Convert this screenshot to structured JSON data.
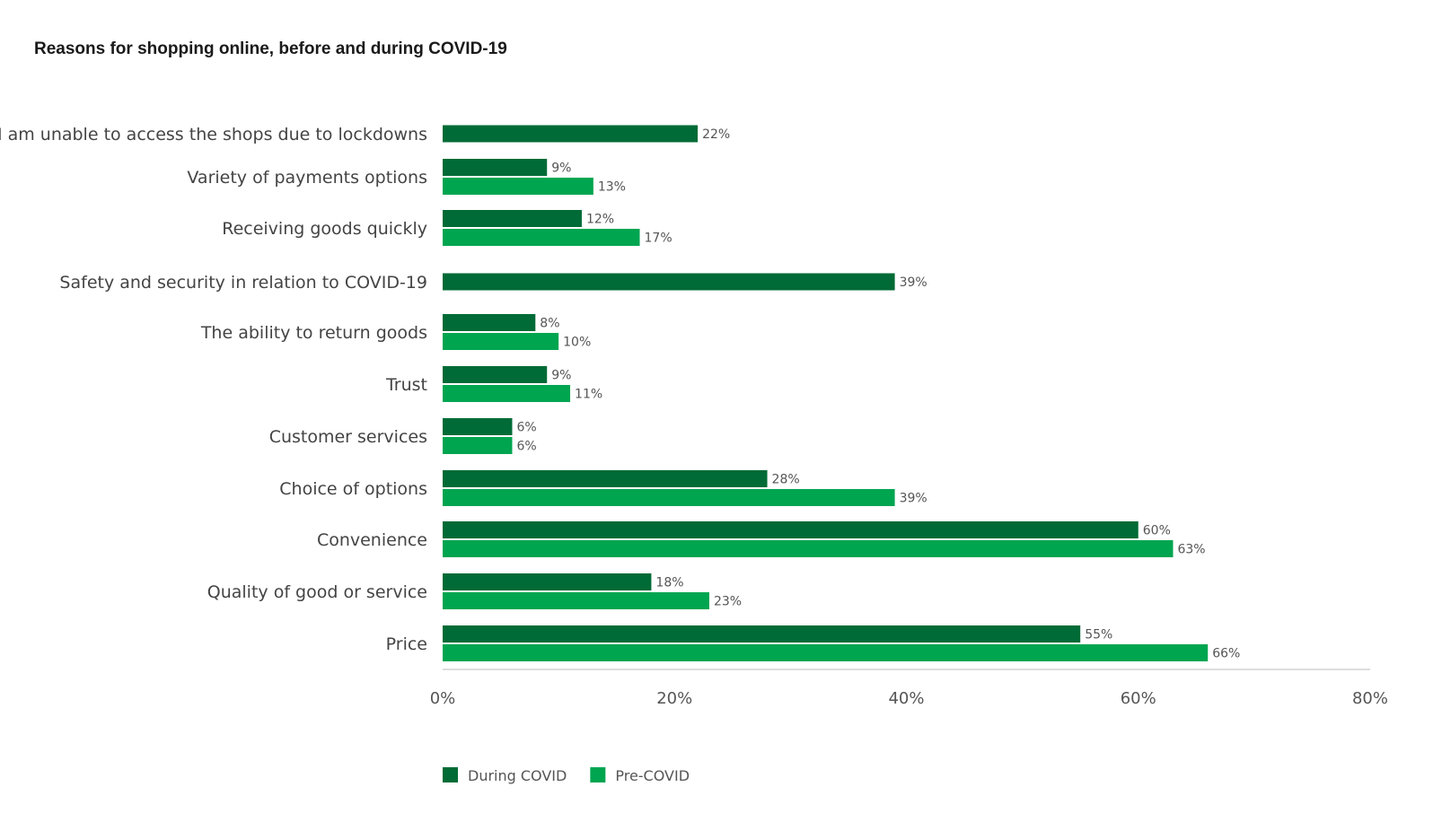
{
  "chart_data": {
    "type": "bar",
    "orientation": "horizontal",
    "title": "Reasons for shopping online, before and during COVID-19",
    "categories": [
      "I am unable to access the shops due to lockdowns",
      "Variety of payments options",
      "Receiving goods quickly",
      "Safety and security in relation to COVID-19",
      "The ability to return goods",
      "Trust",
      "Customer services",
      "Choice of options",
      "Convenience",
      "Quality of good or service",
      "Price"
    ],
    "series": [
      {
        "name": "During COVID",
        "color": "#006b36",
        "values": [
          22,
          9,
          12,
          39,
          8,
          9,
          6,
          28,
          60,
          18,
          55
        ]
      },
      {
        "name": "Pre-COVID",
        "color": "#00a550",
        "values": [
          null,
          13,
          17,
          null,
          10,
          11,
          6,
          39,
          63,
          23,
          66
        ]
      }
    ],
    "xlim": [
      0,
      80
    ],
    "xticks": [
      "0%",
      "20%",
      "40%",
      "60%",
      "80%"
    ],
    "value_suffix": "%",
    "grid": false,
    "legend_position": "bottom-left"
  }
}
